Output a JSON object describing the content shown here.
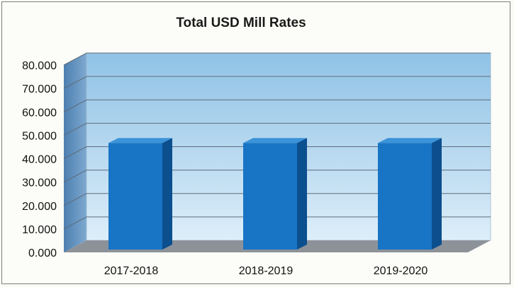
{
  "chart_data": {
    "type": "bar",
    "title": "Total USD Mill Rates",
    "categories": [
      "2017-2018",
      "2018-2019",
      "2019-2020"
    ],
    "values": [
      48.5,
      48.5,
      48.5
    ],
    "ylim": [
      0,
      80
    ],
    "yticks": [
      "0.000",
      "10.000",
      "20.000",
      "30.000",
      "40.000",
      "50.000",
      "60.000",
      "70.000",
      "80.000"
    ],
    "xlabel": "",
    "ylabel": "",
    "grid": true,
    "legend": "none",
    "style": "3d",
    "colors": {
      "bar_front": "#1874c4",
      "bar_side": "#0c4f8e",
      "bar_top": "#3b93d8",
      "wall_top": "#8fc2e6",
      "wall_bottom": "#ddeef9",
      "side_wall": "#4d7fb0",
      "floor": "#8d9299"
    }
  }
}
